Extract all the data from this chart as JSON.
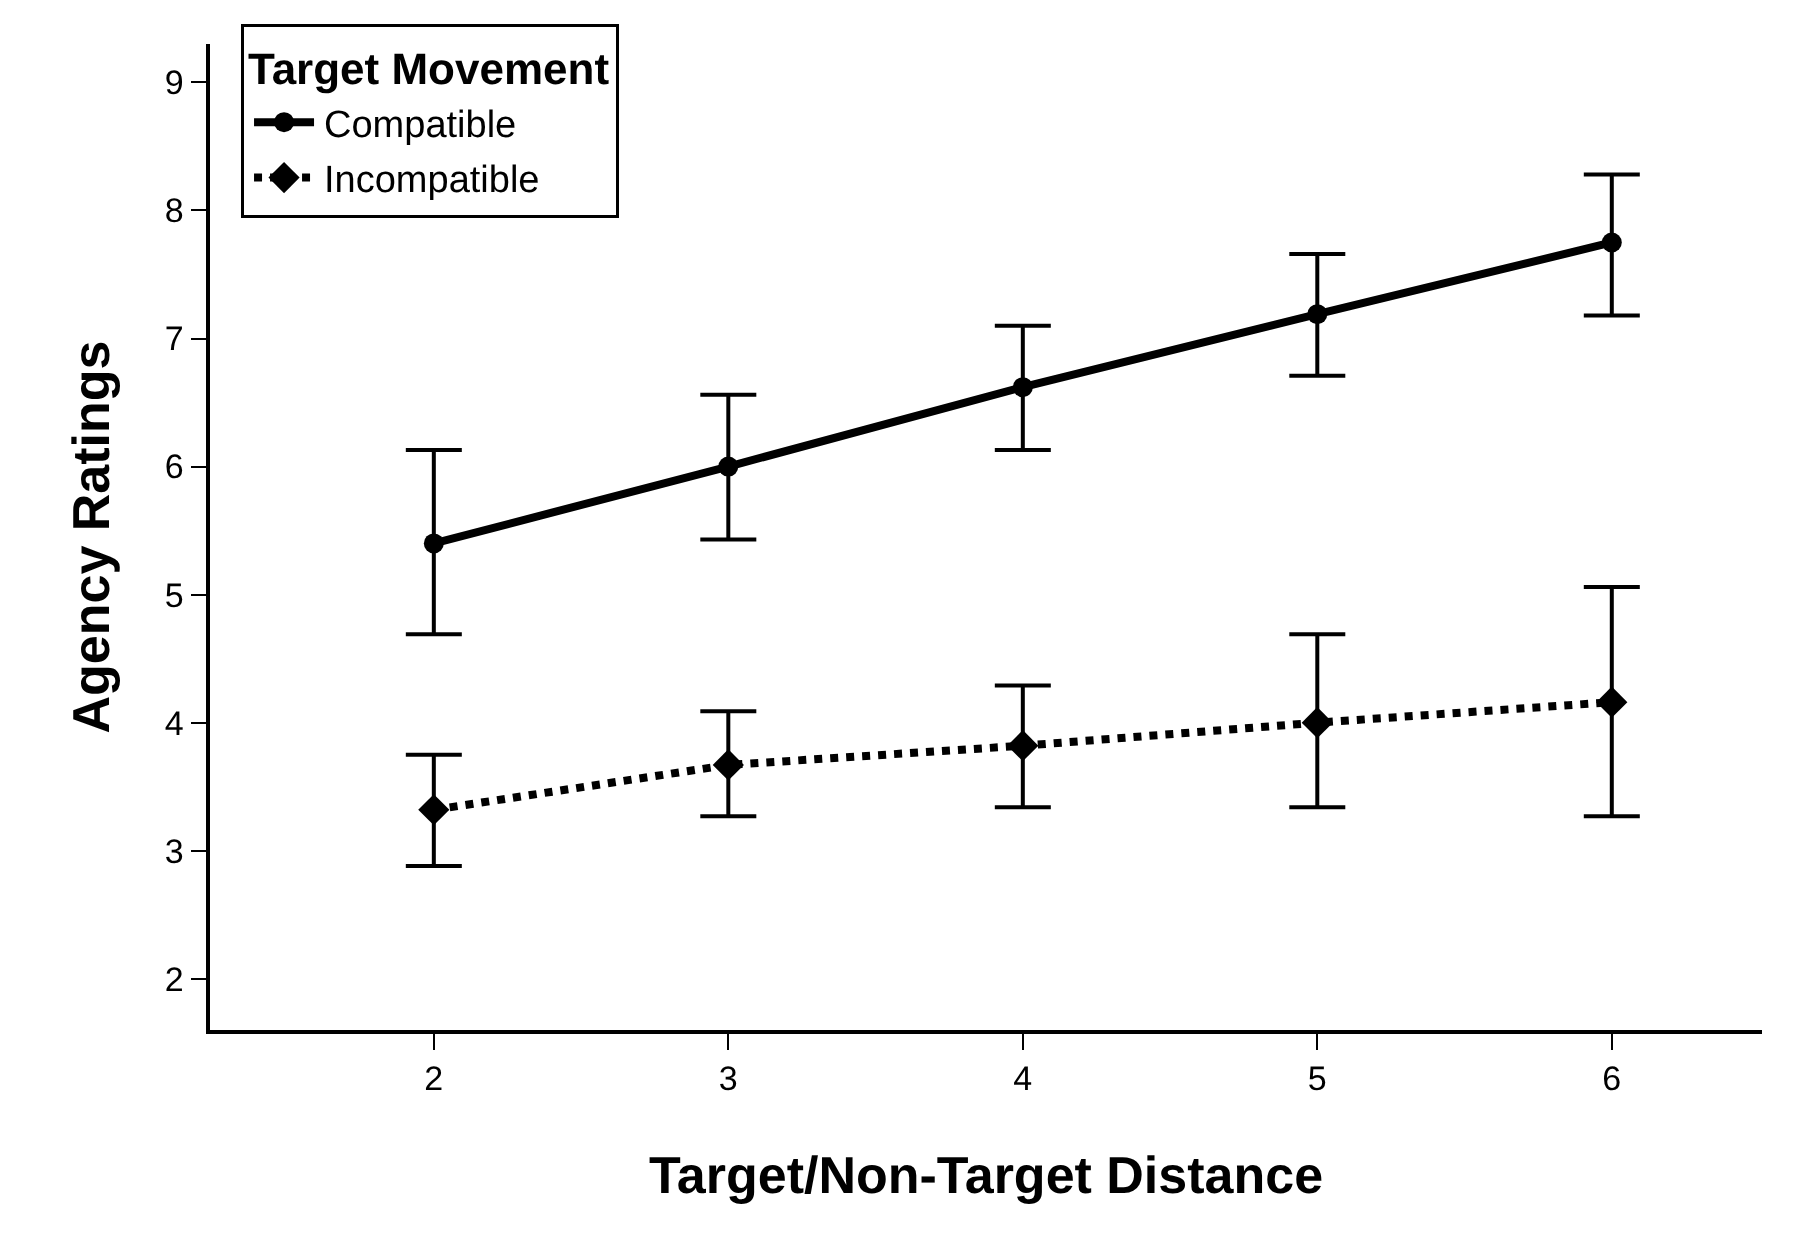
{
  "chart_data": {
    "type": "line",
    "xlabel": "Target/Non-Target Distance",
    "ylabel": "Agency Ratings",
    "legend_title": "Target Movement",
    "legend": "top left",
    "grid": false,
    "x": [
      2,
      3,
      4,
      5,
      6
    ],
    "xlim": [
      1.24,
      6.51
    ],
    "xticks": [
      2,
      3,
      4,
      5,
      6
    ],
    "ylim": [
      1.6,
      9.3
    ],
    "yticks": [
      2,
      3,
      4,
      5,
      6,
      7,
      8,
      9
    ],
    "series": [
      {
        "name": "Compatible",
        "color": "#000000",
        "marker": "circle",
        "line_style": "solid",
        "values": [
          5.4,
          6.0,
          6.62,
          7.19,
          7.75
        ],
        "errors": [
          [
            4.69,
            6.13
          ],
          [
            5.43,
            6.56
          ],
          [
            6.13,
            7.1
          ],
          [
            6.71,
            7.66
          ],
          [
            7.18,
            8.28
          ]
        ]
      },
      {
        "name": "Incompatible",
        "color": "#000000",
        "marker": "diamond",
        "line_style": "dotted",
        "values": [
          3.32,
          3.67,
          3.82,
          4.0,
          4.16
        ],
        "errors": [
          [
            2.88,
            3.75
          ],
          [
            3.27,
            4.09
          ],
          [
            3.34,
            4.29
          ],
          [
            3.34,
            4.69
          ],
          [
            3.27,
            5.06
          ]
        ]
      }
    ]
  }
}
